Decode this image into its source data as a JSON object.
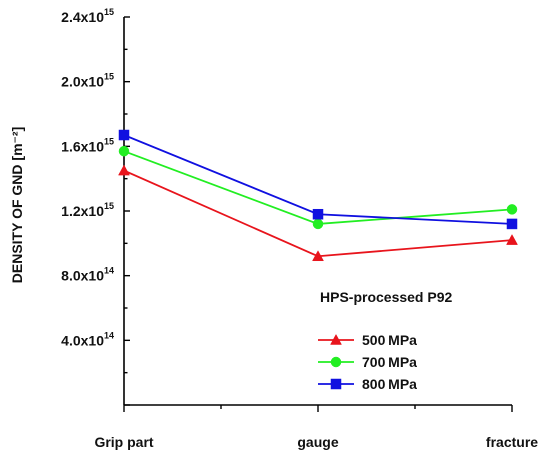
{
  "chart_data": {
    "type": "line",
    "categories": [
      "Grip part",
      "gauge",
      "fracture"
    ],
    "ylabel": "DENSITY OF GND [m⁻²]",
    "ylim": [
      0,
      2400000000000000.0
    ],
    "yticks": [
      {
        "value": 400000000000000.0,
        "mantissa": "4.0x10",
        "exponent": "14"
      },
      {
        "value": 800000000000000.0,
        "mantissa": "8.0x10",
        "exponent": "14"
      },
      {
        "value": 1200000000000000.0,
        "mantissa": "1.2x10",
        "exponent": "15"
      },
      {
        "value": 1600000000000000.0,
        "mantissa": "1.6x10",
        "exponent": "15"
      },
      {
        "value": 2000000000000000.0,
        "mantissa": "2.0x10",
        "exponent": "15"
      },
      {
        "value": 2400000000000000.0,
        "mantissa": "2.4x10",
        "exponent": "15"
      }
    ],
    "annotation": "HPS-processed P92",
    "legend_position": "bottom-right",
    "series": [
      {
        "name": "500 MPa",
        "color": "#e8141c",
        "marker": "triangle",
        "values": [
          1450000000000000.0,
          920000000000000.0,
          1020000000000000.0
        ]
      },
      {
        "name": "700 MPa",
        "color": "#22ee22",
        "marker": "circle",
        "values": [
          1570000000000000.0,
          1120000000000000.0,
          1210000000000000.0
        ]
      },
      {
        "name": "800 MPa",
        "color": "#1010e0",
        "marker": "square",
        "values": [
          1670000000000000.0,
          1180000000000000.0,
          1120000000000000.0
        ]
      }
    ]
  }
}
